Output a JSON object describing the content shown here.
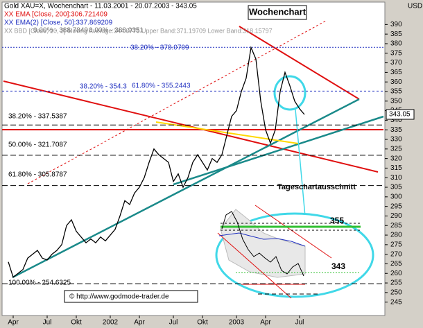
{
  "chart_data": {
    "type": "line",
    "title": "Gold XAU=X, Wochenchart - 11.03.2001 - 20.07.2003 - 343.05",
    "badge": "Wochenchart",
    "currency": "USD",
    "last_price": 343.05,
    "indicator_lines": [
      "XX EMA [Close, 200]:306.721409",
      "XX EMA(2) [Close, 50]:337.869209",
      "XX BBD [Close, 20, 2] Moving Average:344.6775 Upper Band:371.19709 Lower Band:318.15797"
    ],
    "fib_levels": [
      {
        "text": "0.00% - 388.7849",
        "value": 388.7849
      },
      {
        "text": "0.00% - 388.9351",
        "value": 388.9351
      },
      {
        "text": "38.20% - 378.0709",
        "value": 378.0709
      },
      {
        "text": "61.80% - 355.2443",
        "value": 355.2443
      },
      {
        "text": "38.20% - 354.3",
        "value": 354.3
      },
      {
        "text": "38.20% - 337.5387",
        "value": 337.5387
      },
      {
        "text": "50.00% - 321.7087",
        "value": 321.7087
      },
      {
        "text": "61.80% - 305.8787",
        "value": 305.8787
      },
      {
        "text": "100.00% - 254.6325",
        "value": 254.6325
      }
    ],
    "inset_title": "Tageschartausschnitt",
    "inset_labels": [
      {
        "text": "355",
        "value": 355
      },
      {
        "text": "343",
        "value": 343
      }
    ],
    "copyright": "© http://www.godmode-trader.de",
    "categories": [
      null,
      "Apr",
      null,
      null,
      null,
      null,
      null,
      null,
      "Jul",
      null,
      null,
      null,
      null,
      null,
      "Okt",
      null,
      null,
      null,
      null,
      null,
      null,
      "2002",
      null,
      null,
      null,
      null,
      null,
      "Apr",
      null,
      null,
      null,
      null,
      null,
      null,
      "Jul",
      null,
      null,
      null,
      null,
      null,
      "Okt",
      null,
      null,
      null,
      null,
      null,
      null,
      "2003",
      null,
      null,
      null,
      null,
      null,
      "Apr",
      null,
      null,
      null,
      null,
      null,
      null,
      "Jul",
      null
    ],
    "series": [
      {
        "name": "Close",
        "color": "#000000",
        "values": [
          266,
          258,
          260,
          262,
          268,
          270,
          272,
          268,
          267,
          270,
          272,
          275,
          285,
          288,
          282,
          279,
          276,
          278,
          276,
          279,
          277,
          280,
          283,
          290,
          298,
          296,
          302,
          305,
          310,
          318,
          325,
          322,
          320,
          318,
          308,
          312,
          305,
          310,
          318,
          322,
          318,
          314,
          320,
          318,
          322,
          332,
          342,
          345,
          355,
          362,
          378,
          372,
          350,
          335,
          328,
          335,
          355,
          365,
          358,
          350,
          346,
          343
        ]
      }
    ],
    "ylim": [
      238,
      401
    ],
    "yticks": [
      245,
      250,
      255,
      260,
      265,
      270,
      275,
      280,
      285,
      290,
      295,
      300,
      305,
      310,
      315,
      320,
      325,
      330,
      335,
      340,
      345,
      350,
      355,
      360,
      365,
      370,
      375,
      380,
      385,
      390
    ],
    "grid": false
  }
}
